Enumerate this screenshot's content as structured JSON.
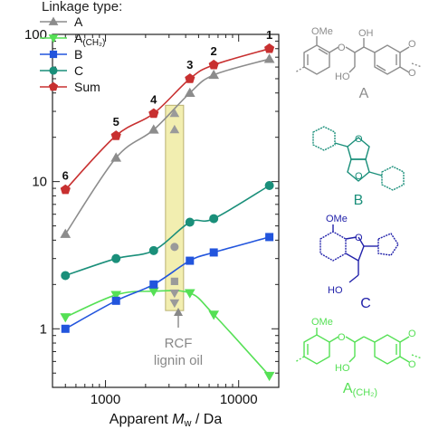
{
  "chart_data": {
    "type": "line",
    "xlabel_prefix": "Apparent ",
    "xlabel_var": "M",
    "xlabel_sub": "w",
    "xlabel_suffix": " / Da",
    "xscale": "log",
    "yscale": "log",
    "xlim": [
      400,
      20000
    ],
    "ylim": [
      0.4,
      100
    ],
    "x_ticks": [
      1000,
      10000
    ],
    "x_tick_labels": [
      "1000",
      "10000"
    ],
    "y_ticks": [
      1,
      10,
      100
    ],
    "y_tick_labels": [
      "1",
      "10",
      "100"
    ],
    "legend_title": "Linkage type:",
    "legend_position": "top-left",
    "x": [
      500,
      1200,
      2300,
      4300,
      6500,
      17000
    ],
    "series": [
      {
        "name": "A",
        "color": "#8c8c8c",
        "marker": "triangle-up",
        "values": [
          4.4,
          14.5,
          22.5,
          40.0,
          53.0,
          68.0
        ]
      },
      {
        "name": "A",
        "name_sub": "(CH₂)",
        "color": "#55e055",
        "marker": "triangle-down",
        "values": [
          1.2,
          1.7,
          1.8,
          1.75,
          1.25,
          0.48
        ]
      },
      {
        "name": "B",
        "color": "#2255dd",
        "marker": "square",
        "values": [
          1.0,
          1.55,
          2.0,
          2.9,
          3.3,
          4.2
        ]
      },
      {
        "name": "C",
        "color": "#1a8f7a",
        "marker": "circle",
        "values": [
          2.3,
          3.0,
          3.4,
          5.3,
          5.6,
          9.4
        ]
      },
      {
        "name": "Sum",
        "color": "#c83030",
        "marker": "pentagon",
        "values": [
          8.8,
          20.5,
          29.0,
          50.0,
          62.0,
          80.0
        ]
      }
    ],
    "point_labels": [
      "6",
      "5",
      "4",
      "3",
      "2",
      "1"
    ],
    "rcf_x": 3300,
    "rcf_points": [
      {
        "series": 0,
        "value": 29.0
      },
      {
        "series": 0,
        "value": 22.5
      },
      {
        "series": 3,
        "value": 3.6
      },
      {
        "series": 2,
        "value": 2.1
      },
      {
        "series": 1,
        "value": 1.75
      },
      {
        "series": 1,
        "value": 1.5
      }
    ],
    "rcf_label_1": "RCF",
    "rcf_label_2": "lignin oil"
  },
  "structures": {
    "A": {
      "label": "A",
      "color": "#8c8c8c",
      "ome": "OMe",
      "oh": "OH",
      "ho": "HO"
    },
    "B": {
      "label": "B",
      "color": "#1a8f7a"
    },
    "C": {
      "label": "C",
      "color": "#2222aa",
      "ome": "OMe",
      "ho": "HO"
    },
    "A_CH2": {
      "label": "A",
      "label_sub": "(CH₂)",
      "color": "#55e055",
      "ome": "OMe",
      "ho": "HO"
    }
  }
}
